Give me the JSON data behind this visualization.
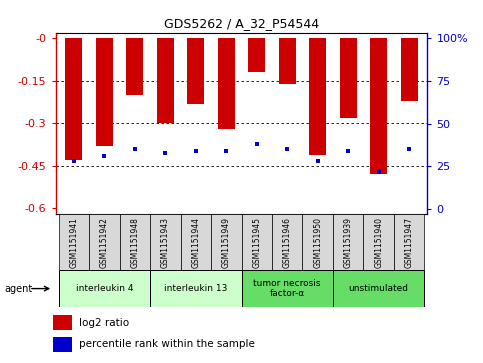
{
  "title": "GDS5262 / A_32_P54544",
  "samples": [
    "GSM1151941",
    "GSM1151942",
    "GSM1151948",
    "GSM1151943",
    "GSM1151944",
    "GSM1151949",
    "GSM1151945",
    "GSM1151946",
    "GSM1151950",
    "GSM1151939",
    "GSM1151940",
    "GSM1151947"
  ],
  "log2_ratio": [
    -0.43,
    -0.38,
    -0.2,
    -0.3,
    -0.23,
    -0.32,
    -0.12,
    -0.16,
    -0.41,
    -0.28,
    -0.48,
    -0.22
  ],
  "percentile_rank": [
    30,
    33,
    37,
    35,
    36,
    36,
    40,
    37,
    30,
    36,
    24,
    37
  ],
  "bar_color": "#cc0000",
  "dot_color": "#0000cc",
  "groups": [
    {
      "label": "interleukin 4",
      "start": 0,
      "end": 3,
      "color": "#ccffcc"
    },
    {
      "label": "interleukin 13",
      "start": 3,
      "end": 6,
      "color": "#ccffcc"
    },
    {
      "label": "tumor necrosis\nfactor-α",
      "start": 6,
      "end": 9,
      "color": "#66dd66"
    },
    {
      "label": "unstimulated",
      "start": 9,
      "end": 12,
      "color": "#66dd66"
    }
  ],
  "ylim_left": [
    -0.62,
    0.02
  ],
  "ylim_right": [
    -3.1,
    103.333
  ],
  "yticks_left": [
    0.0,
    -0.15,
    -0.3,
    -0.45,
    -0.6
  ],
  "yticks_left_labels": [
    "-0",
    "-0.15",
    "-0.3",
    "-0.45",
    "-0.6"
  ],
  "yticks_right": [
    0,
    25,
    50,
    75,
    100
  ],
  "yticks_right_labels": [
    "0",
    "25",
    "50",
    "75",
    "100%"
  ],
  "background_color": "#ffffff",
  "plot_bg_color": "#ffffff",
  "left_axis_color": "#cc0000",
  "right_axis_color": "#0000cc",
  "agent_label": "agent"
}
